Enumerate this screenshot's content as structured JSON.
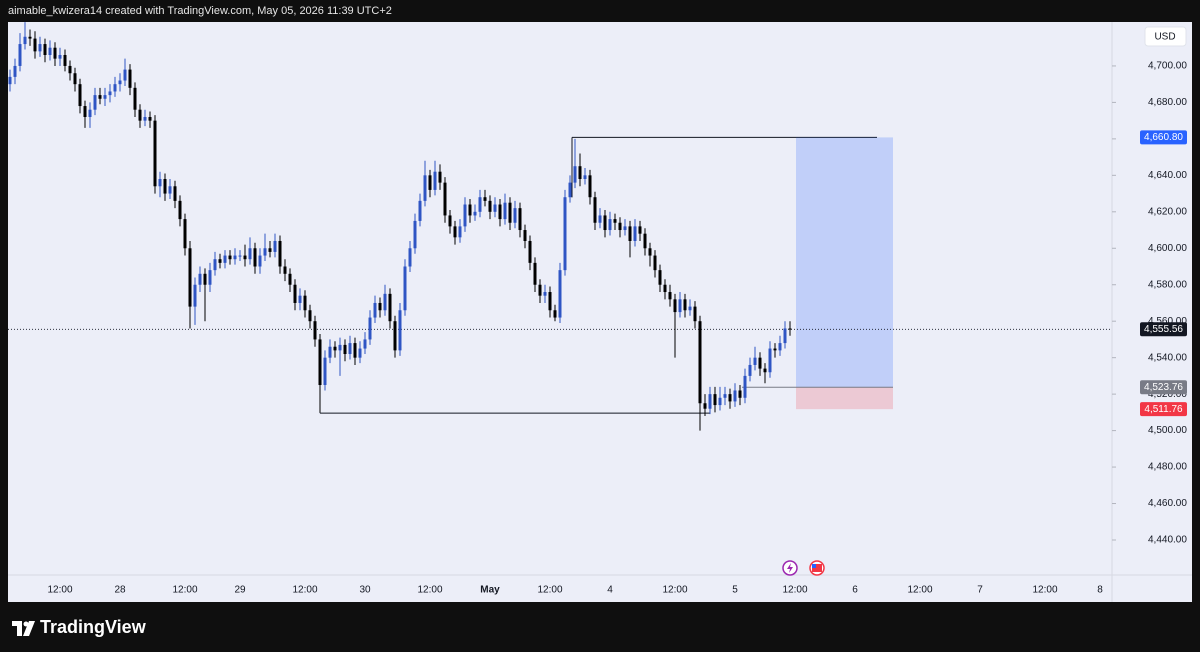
{
  "header": "aimable_kwizera14 created with TradingView.com, May 05, 2026 11:39 UTC+2",
  "footer": "TradingView",
  "chart_data": {
    "type": "candlestick",
    "currency": "USD",
    "up_color": "#2f55c4",
    "down_color": "#000000",
    "grid": false,
    "ylim": [
      4420.8,
      4724.1
    ],
    "yticks": [
      {
        "value": 4440,
        "label": "4,440.00"
      },
      {
        "value": 4460,
        "label": "4,460.00"
      },
      {
        "value": 4480,
        "label": "4,480.00"
      },
      {
        "value": 4500,
        "label": "4,500.00"
      },
      {
        "value": 4520,
        "label": "4,520.00"
      },
      {
        "value": 4540,
        "label": "4,540.00"
      },
      {
        "value": 4560,
        "label": "4,560.00"
      },
      {
        "value": 4580,
        "label": "4,580.00"
      },
      {
        "value": 4600,
        "label": "4,600.00"
      },
      {
        "value": 4620,
        "label": "4,620.00"
      },
      {
        "value": 4640,
        "label": "4,640.00"
      },
      {
        "value": 4660,
        "label": "4,660.00"
      },
      {
        "value": 4680,
        "label": "4,680.00"
      },
      {
        "value": 4700,
        "label": "4,700.00"
      }
    ],
    "categories": [
      null,
      null,
      null,
      null,
      null,
      null,
      null,
      null,
      null,
      null,
      "12:00",
      null,
      null,
      null,
      null,
      null,
      null,
      null,
      null,
      null,
      null,
      null,
      "28",
      null,
      null,
      null,
      null,
      null,
      null,
      null,
      null,
      null,
      null,
      null,
      null,
      "12:00",
      null,
      null,
      null,
      null,
      null,
      null,
      null,
      null,
      null,
      null,
      "29",
      null,
      null,
      null,
      null,
      null,
      null,
      null,
      null,
      null,
      null,
      null,
      null,
      "12:00",
      null,
      null,
      null,
      null,
      null,
      null,
      null,
      null,
      null,
      null,
      null,
      "30",
      null,
      null,
      null,
      null,
      null,
      null,
      null,
      null,
      null,
      null,
      null,
      null,
      "12:00",
      null,
      null,
      null,
      null,
      null,
      null,
      null,
      null,
      null,
      null,
      null,
      "May",
      null,
      null,
      null,
      null,
      null,
      null,
      null,
      null,
      null,
      null,
      null,
      "12:00",
      null,
      null,
      null,
      null,
      null,
      null,
      null,
      null,
      null,
      null,
      null,
      "4",
      null,
      null,
      null,
      null,
      null,
      null,
      null,
      null,
      null,
      null,
      null,
      null,
      "12:00",
      null,
      null,
      null,
      null,
      null,
      null,
      null,
      null,
      null,
      null,
      null,
      "5",
      null,
      null,
      null,
      null,
      null,
      null,
      null,
      null,
      null,
      null,
      null,
      "12:00",
      null,
      null,
      null,
      null,
      null,
      null,
      null,
      null,
      null,
      null,
      null,
      "6",
      null,
      null,
      null,
      null,
      null,
      null,
      null,
      null,
      null,
      null,
      null,
      null,
      "12:00",
      null,
      null,
      null,
      null,
      null,
      null,
      null,
      null,
      null,
      null,
      null,
      "7",
      null,
      null,
      null,
      null,
      null,
      null,
      null,
      null,
      null,
      null,
      null,
      null,
      "12:00",
      null,
      null,
      null,
      null,
      null,
      null,
      null,
      null,
      null,
      null,
      "8",
      null,
      null
    ],
    "open": [
      4690,
      4694,
      4700,
      4712,
      4716,
      4715,
      4708,
      4712,
      4706,
      4710,
      4704,
      4706,
      4700,
      4696,
      4690,
      4678,
      4672,
      4676,
      4684,
      4682,
      4684,
      4686,
      4690,
      4692,
      4698,
      4688,
      4676,
      4670,
      4672,
      4670,
      4634,
      4638,
      4630,
      4634,
      4626,
      4616,
      4600,
      4568,
      4580,
      4586,
      4580,
      4588,
      4594,
      4592,
      4596,
      4594,
      4596,
      4596,
      4594,
      4600,
      4590,
      4596,
      4600,
      4598,
      4604,
      4590,
      4586,
      4580,
      4570,
      4574,
      4566,
      4560,
      4550,
      4525,
      4540,
      4546,
      4544,
      4547,
      4542,
      4548,
      4540,
      4545,
      4550,
      4562,
      4570,
      4566,
      4575,
      4560,
      4544,
      4566,
      4590,
      4600,
      4615,
      4626,
      4640,
      4632,
      4642,
      4636,
      4618,
      4612,
      4606,
      4612,
      4624,
      4618,
      4620,
      4628,
      4626,
      4620,
      4624,
      4616,
      4625,
      4614,
      4622,
      4610,
      4604,
      4592,
      4580,
      4574,
      4576,
      4566,
      4562,
      4588,
      4628,
      4636,
      4645,
      4638,
      4640,
      4628,
      4614,
      4618,
      4610,
      4616,
      4614,
      4610,
      4612,
      4604,
      4612,
      4608,
      4600,
      4596,
      4588,
      4580,
      4576,
      4572,
      4565,
      4572,
      4566,
      4568,
      4560,
      4515,
      4512,
      4520,
      4514,
      4518,
      4520,
      4516,
      4522,
      4518,
      4530,
      4536,
      4540,
      4534,
      4532,
      4545,
      4544,
      4548,
      4556,
      null,
      null,
      null,
      null,
      null,
      null,
      null,
      null,
      null,
      null,
      null,
      null,
      null,
      null,
      null,
      null,
      null,
      null,
      null,
      null,
      null,
      null,
      null,
      null,
      null,
      null,
      null,
      null,
      null,
      null,
      null,
      null,
      null,
      null,
      null,
      null,
      null,
      null,
      null,
      null,
      null,
      null,
      null,
      null,
      null,
      null,
      null,
      null,
      null,
      null,
      null,
      null,
      null,
      null,
      null,
      null,
      null,
      null,
      null,
      null,
      null,
      null,
      null,
      null
    ],
    "high": [
      4698,
      4704,
      4718,
      4724,
      4720,
      4719,
      4716,
      4715,
      4714,
      4713,
      4710,
      4709,
      4703,
      4699,
      4693,
      4681,
      4680,
      4688,
      4688,
      4688,
      4690,
      4694,
      4696,
      4704,
      4701,
      4691,
      4679,
      4676,
      4675,
      4673,
      4642,
      4641,
      4638,
      4637,
      4629,
      4619,
      4604,
      4584,
      4590,
      4589,
      4592,
      4598,
      4597,
      4599,
      4599,
      4600,
      4599,
      4602,
      4606,
      4603,
      4600,
      4608,
      4604,
      4608,
      4607,
      4594,
      4589,
      4583,
      4578,
      4577,
      4569,
      4563,
      4553,
      4544,
      4550,
      4549,
      4551,
      4550,
      4552,
      4551,
      4549,
      4554,
      4566,
      4574,
      4573,
      4580,
      4578,
      4563,
      4570,
      4594,
      4604,
      4619,
      4630,
      4648,
      4643,
      4648,
      4646,
      4639,
      4621,
      4615,
      4616,
      4628,
      4627,
      4624,
      4632,
      4632,
      4629,
      4628,
      4627,
      4630,
      4628,
      4626,
      4625,
      4613,
      4607,
      4595,
      4583,
      4580,
      4579,
      4569,
      4592,
      4632,
      4640,
      4660,
      4652,
      4644,
      4643,
      4631,
      4622,
      4621,
      4620,
      4619,
      4617,
      4616,
      4615,
      4616,
      4615,
      4611,
      4603,
      4599,
      4591,
      4583,
      4580,
      4575,
      4576,
      4575,
      4572,
      4571,
      4563,
      4520,
      4524,
      4524,
      4524,
      4524,
      4523,
      4526,
      4525,
      4534,
      4540,
      4546,
      4543,
      4537,
      4549,
      4548,
      4552,
      4560,
      4560,
      null,
      null,
      null,
      null,
      null,
      null,
      null,
      null,
      null,
      null,
      null,
      null,
      null,
      null,
      null,
      null,
      null,
      null,
      null,
      null,
      null,
      null,
      null,
      null,
      null,
      null,
      null,
      null,
      null,
      null,
      null,
      null,
      null,
      null,
      null,
      null,
      null,
      null,
      null,
      null,
      null,
      null,
      null,
      null,
      null,
      null,
      null,
      null,
      null,
      null,
      null,
      null,
      null,
      null,
      null,
      null,
      null,
      null,
      null,
      null,
      null,
      null,
      null,
      null
    ],
    "low": [
      4686,
      4690,
      4697,
      4709,
      4711,
      4704,
      4705,
      4702,
      4703,
      4700,
      4700,
      4697,
      4692,
      4686,
      4674,
      4666,
      4666,
      4673,
      4679,
      4678,
      4680,
      4683,
      4686,
      4689,
      4684,
      4672,
      4666,
      4667,
      4666,
      4630,
      4628,
      4626,
      4627,
      4622,
      4612,
      4596,
      4556,
      4558,
      4576,
      4560,
      4576,
      4585,
      4589,
      4589,
      4591,
      4591,
      4593,
      4590,
      4591,
      4586,
      4586,
      4593,
      4595,
      4595,
      4586,
      4582,
      4576,
      4566,
      4566,
      4562,
      4556,
      4546,
      4510,
      4522,
      4537,
      4540,
      4530,
      4538,
      4539,
      4536,
      4537,
      4542,
      4547,
      4559,
      4562,
      4563,
      4556,
      4540,
      4541,
      4563,
      4587,
      4597,
      4612,
      4623,
      4628,
      4629,
      4632,
      4614,
      4608,
      4602,
      4603,
      4609,
      4614,
      4615,
      4617,
      4623,
      4616,
      4617,
      4612,
      4613,
      4610,
      4611,
      4606,
      4600,
      4588,
      4576,
      4570,
      4570,
      4562,
      4560,
      4559,
      4585,
      4625,
      4633,
      4634,
      4635,
      4624,
      4610,
      4611,
      4606,
      4607,
      4610,
      4606,
      4607,
      4595,
      4601,
      4604,
      4596,
      4590,
      4584,
      4576,
      4572,
      4568,
      4540,
      4562,
      4562,
      4563,
      4556,
      4500,
      4508,
      4509,
      4510,
      4511,
      4514,
      4512,
      4513,
      4514,
      4515,
      4527,
      4533,
      4530,
      4526,
      4529,
      4540,
      4541,
      4545,
      4552,
      null,
      null,
      null,
      null,
      null,
      null,
      null,
      null,
      null,
      null,
      null,
      null,
      null,
      null,
      null,
      null,
      null,
      null,
      null,
      null,
      null,
      null,
      null,
      null,
      null,
      null,
      null,
      null,
      null,
      null,
      null,
      null,
      null,
      null,
      null,
      null,
      null,
      null,
      null,
      null,
      null,
      null,
      null,
      null,
      null,
      null,
      null,
      null,
      null,
      null,
      null,
      null,
      null,
      null,
      null,
      null,
      null,
      null,
      null,
      null,
      null,
      null,
      null,
      null
    ],
    "close": [
      4694,
      4700,
      4712,
      4716,
      4715,
      4708,
      4712,
      4706,
      4710,
      4704,
      4706,
      4700,
      4696,
      4690,
      4678,
      4672,
      4676,
      4684,
      4682,
      4684,
      4686,
      4690,
      4692,
      4698,
      4688,
      4676,
      4670,
      4672,
      4670,
      4634,
      4638,
      4630,
      4634,
      4626,
      4616,
      4600,
      4568,
      4580,
      4586,
      4580,
      4588,
      4594,
      4592,
      4596,
      4594,
      4596,
      4596,
      4594,
      4600,
      4590,
      4596,
      4600,
      4598,
      4604,
      4590,
      4586,
      4580,
      4570,
      4574,
      4566,
      4560,
      4550,
      4525,
      4540,
      4546,
      4544,
      4547,
      4542,
      4548,
      4540,
      4545,
      4550,
      4562,
      4570,
      4566,
      4575,
      4560,
      4544,
      4566,
      4590,
      4600,
      4615,
      4626,
      4640,
      4632,
      4642,
      4636,
      4618,
      4612,
      4606,
      4612,
      4624,
      4618,
      4620,
      4628,
      4626,
      4620,
      4624,
      4616,
      4625,
      4614,
      4622,
      4610,
      4604,
      4592,
      4580,
      4574,
      4576,
      4566,
      4562,
      4588,
      4628,
      4636,
      4645,
      4638,
      4640,
      4628,
      4614,
      4618,
      4610,
      4616,
      4614,
      4610,
      4612,
      4604,
      4612,
      4608,
      4600,
      4596,
      4588,
      4580,
      4576,
      4572,
      4565,
      4572,
      4566,
      4568,
      4560,
      4515,
      4512,
      4520,
      4514,
      4518,
      4520,
      4516,
      4522,
      4518,
      4530,
      4536,
      4540,
      4534,
      4532,
      4545,
      4544,
      4548,
      4556,
      4555.56,
      null,
      null,
      null,
      null,
      null,
      null,
      null,
      null,
      null,
      null,
      null,
      null,
      null,
      null,
      null,
      null,
      null,
      null,
      null,
      null,
      null,
      null,
      null,
      null,
      null,
      null,
      null,
      null,
      null,
      null,
      null,
      null,
      null,
      null,
      null,
      null,
      null,
      null,
      null,
      null,
      null,
      null,
      null,
      null,
      null,
      null,
      null,
      null,
      null,
      null,
      null,
      null,
      null,
      null,
      null,
      null,
      null,
      null,
      null,
      null,
      null,
      null,
      null,
      null
    ],
    "range": {
      "high": 4660.8,
      "low": 4509.6
    },
    "price_labels": {
      "values": [
        4660.8,
        4555.56,
        4523.76,
        4511.76
      ],
      "value_labels": [
        "4,660.80",
        "4,555.56",
        "4,523.76",
        "4,511.76"
      ],
      "colors": [
        "#2962ff",
        "#131722",
        "#787b86",
        "#f23645"
      ]
    }
  }
}
